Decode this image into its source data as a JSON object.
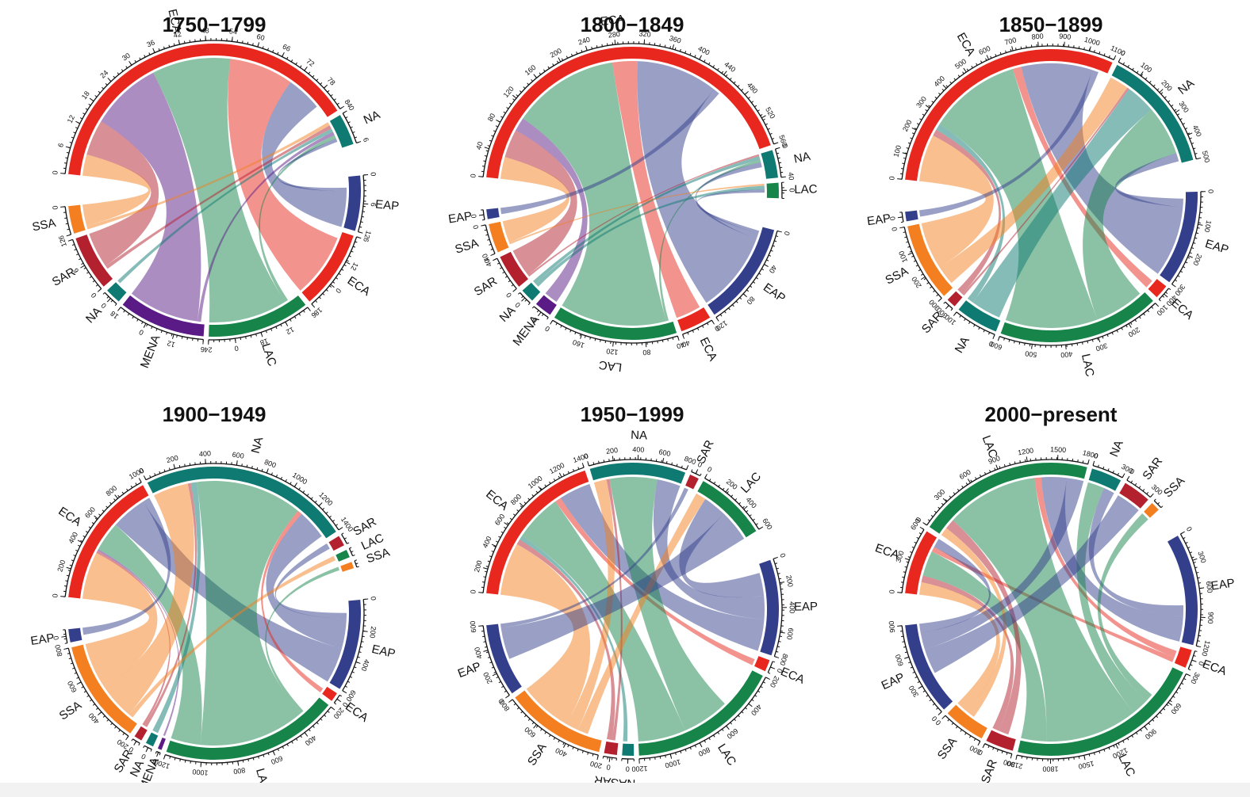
{
  "colors": {
    "ECA": "#e8281e",
    "NA": "#0e7a72",
    "EAP": "#343f8c",
    "SSA": "#f47f20",
    "SAR": "#b3202e",
    "MENA": "#5a1b86",
    "LAC": "#17844a"
  },
  "chart_data": [
    {
      "type": "chord",
      "title": "1750−1799",
      "sectors": [
        {
          "name": "ECA",
          "value": 90,
          "ticks": [
            "0",
            "6",
            "12",
            "18",
            "24",
            "30",
            "36",
            "42",
            "48",
            "54",
            "60",
            "66",
            "72",
            "78",
            "84"
          ]
        },
        {
          "name": "NA",
          "value": 8,
          "ticks": [
            "0",
            "6"
          ]
        },
        {
          "name": "EAP",
          "value": 14,
          "ticks": [
            "0",
            "6",
            "12"
          ]
        },
        {
          "name": "ECA",
          "value": 20,
          "ticks": [
            "6",
            "12",
            "0",
            "18"
          ]
        },
        {
          "name": "LAC",
          "value": 26,
          "ticks": [
            "6",
            "12",
            "18",
            "0",
            "24"
          ]
        },
        {
          "name": "MENA",
          "value": 22,
          "ticks": [
            "6",
            "12",
            "0",
            "18"
          ]
        },
        {
          "name": "NA",
          "value": 4,
          "ticks": [
            "0"
          ]
        },
        {
          "name": "SAR",
          "value": 14,
          "ticks": [
            "0",
            "6",
            "12"
          ]
        },
        {
          "name": "SSA",
          "value": 7,
          "ticks": [
            "6",
            "0"
          ]
        }
      ],
      "links": [
        {
          "from": 0,
          "to": 8,
          "value": 6
        },
        {
          "from": 0,
          "to": 7,
          "value": 10
        },
        {
          "from": 0,
          "to": 5,
          "value": 20
        },
        {
          "from": 0,
          "to": 4,
          "value": 22
        },
        {
          "from": 0,
          "to": 3,
          "value": 18
        },
        {
          "from": 0,
          "to": 2,
          "value": 10
        },
        {
          "from": 1,
          "to": 8,
          "value": 1
        },
        {
          "from": 1,
          "to": 7,
          "value": 1
        },
        {
          "from": 1,
          "to": 6,
          "value": 1
        },
        {
          "from": 1,
          "to": 5,
          "value": 1
        },
        {
          "from": 1,
          "to": 4,
          "value": 1
        },
        {
          "from": 1,
          "to": 2,
          "value": 1
        }
      ]
    },
    {
      "type": "chord",
      "title": "1800−1849",
      "sectors": [
        {
          "name": "ECA",
          "value": 560,
          "ticks": [
            "0",
            "40",
            "80",
            "120",
            "160",
            "200",
            "240",
            "280",
            "320",
            "360",
            "400",
            "440",
            "480",
            "520",
            "560"
          ]
        },
        {
          "name": "NA",
          "value": 40,
          "ticks": [
            "0",
            "40"
          ]
        },
        {
          "name": "LAC",
          "value": 22,
          "ticks": [
            "0"
          ]
        },
        {
          "name": "EAP",
          "value": 150,
          "ticks": [
            "0",
            "40",
            "80",
            "120"
          ]
        },
        {
          "name": "ECA",
          "value": 45,
          "ticks": [
            "0",
            "40"
          ]
        },
        {
          "name": "LAC",
          "value": 180,
          "ticks": [
            "40",
            "80",
            "120",
            "160",
            "0"
          ]
        },
        {
          "name": "MENA",
          "value": 25,
          "ticks": [
            "0"
          ]
        },
        {
          "name": "NA",
          "value": 20,
          "ticks": [
            "0"
          ]
        },
        {
          "name": "SAR",
          "value": 50,
          "ticks": [
            "0",
            "40"
          ]
        },
        {
          "name": "SSA",
          "value": 42,
          "ticks": [
            "40",
            "0"
          ]
        },
        {
          "name": "EAP",
          "value": 14,
          "ticks": [
            "0"
          ]
        }
      ],
      "links": [
        {
          "from": 0,
          "to": 9,
          "value": 35
        },
        {
          "from": 0,
          "to": 8,
          "value": 45
        },
        {
          "from": 0,
          "to": 6,
          "value": 22
        },
        {
          "from": 0,
          "to": 5,
          "value": 170
        },
        {
          "from": 0,
          "to": 4,
          "value": 40
        },
        {
          "from": 0,
          "to": 3,
          "value": 130
        },
        {
          "from": 0,
          "to": 10,
          "value": 10
        },
        {
          "from": 1,
          "to": 8,
          "value": 3
        },
        {
          "from": 1,
          "to": 7,
          "value": 6
        },
        {
          "from": 1,
          "to": 5,
          "value": 4
        },
        {
          "from": 1,
          "to": 3,
          "value": 8
        },
        {
          "from": 2,
          "to": 9,
          "value": 3
        },
        {
          "from": 2,
          "to": 7,
          "value": 6
        },
        {
          "from": 2,
          "to": 3,
          "value": 5
        }
      ]
    },
    {
      "type": "chord",
      "title": "1850−1899",
      "sectors": [
        {
          "name": "ECA",
          "value": 1150,
          "ticks": [
            "0",
            "100",
            "200",
            "300",
            "400",
            "500",
            "600",
            "700",
            "800",
            "900",
            "1000",
            "1100"
          ]
        },
        {
          "name": "NA",
          "value": 520,
          "ticks": [
            "0",
            "100",
            "200",
            "300",
            "400",
            "500"
          ]
        },
        {
          "name": "EAP",
          "value": 400,
          "ticks": [
            "0",
            "100",
            "200",
            "300"
          ]
        },
        {
          "name": "ECA",
          "value": 60,
          "ticks": [
            "400"
          ]
        },
        {
          "name": "LAC",
          "value": 680,
          "ticks": [
            "100",
            "200",
            "300",
            "400",
            "500",
            "600"
          ]
        },
        {
          "name": "NA",
          "value": 180,
          "ticks": [
            "0",
            "100"
          ]
        },
        {
          "name": "SAR",
          "value": 40,
          "ticks": [
            "300"
          ]
        },
        {
          "name": "SSA",
          "value": 330,
          "ticks": [
            "300",
            "200",
            "100",
            "0"
          ]
        },
        {
          "name": "EAP",
          "value": 40,
          "ticks": [
            "0"
          ]
        }
      ],
      "links": [
        {
          "from": 0,
          "to": 7,
          "value": 220
        },
        {
          "from": 0,
          "to": 6,
          "value": 30
        },
        {
          "from": 0,
          "to": 5,
          "value": 30
        },
        {
          "from": 0,
          "to": 4,
          "value": 430
        },
        {
          "from": 0,
          "to": 3,
          "value": 40
        },
        {
          "from": 0,
          "to": 2,
          "value": 330
        },
        {
          "from": 0,
          "to": 8,
          "value": 30
        },
        {
          "from": 1,
          "to": 7,
          "value": 90
        },
        {
          "from": 1,
          "to": 6,
          "value": 10
        },
        {
          "from": 1,
          "to": 5,
          "value": 140
        },
        {
          "from": 1,
          "to": 4,
          "value": 230
        },
        {
          "from": 1,
          "to": 2,
          "value": 40
        }
      ]
    },
    {
      "type": "chord",
      "title": "1900−1949",
      "sectors": [
        {
          "name": "ECA",
          "value": 1050,
          "ticks": [
            "0",
            "200",
            "400",
            "600",
            "800",
            "1000"
          ]
        },
        {
          "name": "NA",
          "value": 1600,
          "ticks": [
            "0",
            "200",
            "400",
            "600",
            "800",
            "1000",
            "1200",
            "1400"
          ]
        },
        {
          "name": "SAR",
          "value": 80,
          "ticks": []
        },
        {
          "name": "LAC",
          "value": 60,
          "ticks": []
        },
        {
          "name": "SSA",
          "value": 50,
          "ticks": []
        },
        {
          "name": "EAP",
          "value": 700,
          "ticks": [
            "0",
            "200",
            "400",
            "600"
          ]
        },
        {
          "name": "ECA",
          "value": 70,
          "ticks": [
            "0"
          ]
        },
        {
          "name": "LAC",
          "value": 1350,
          "ticks": [
            "200",
            "400",
            "600",
            "800",
            "1000",
            "1200"
          ]
        },
        {
          "name": "MENA",
          "value": 30,
          "ticks": [
            "0"
          ]
        },
        {
          "name": "NA",
          "value": 60,
          "ticks": [
            "0"
          ]
        },
        {
          "name": "SAR",
          "value": 60,
          "ticks": [
            "0"
          ]
        },
        {
          "name": "SSA",
          "value": 800,
          "ticks": [
            "200",
            "400",
            "600",
            "800"
          ]
        },
        {
          "name": "EAP",
          "value": 100,
          "ticks": [
            "0"
          ]
        }
      ],
      "links": [
        {
          "from": 0,
          "to": 11,
          "value": 400
        },
        {
          "from": 0,
          "to": 10,
          "value": 20
        },
        {
          "from": 0,
          "to": 8,
          "value": 15
        },
        {
          "from": 0,
          "to": 7,
          "value": 250
        },
        {
          "from": 0,
          "to": 5,
          "value": 300
        },
        {
          "from": 0,
          "to": 12,
          "value": 60
        },
        {
          "from": 1,
          "to": 11,
          "value": 300
        },
        {
          "from": 1,
          "to": 10,
          "value": 25
        },
        {
          "from": 1,
          "to": 9,
          "value": 50
        },
        {
          "from": 1,
          "to": 7,
          "value": 900
        },
        {
          "from": 1,
          "to": 6,
          "value": 40
        },
        {
          "from": 1,
          "to": 5,
          "value": 250
        },
        {
          "from": 2,
          "to": 5,
          "value": 50
        },
        {
          "from": 3,
          "to": 11,
          "value": 40
        },
        {
          "from": 4,
          "to": 7,
          "value": 30
        }
      ]
    },
    {
      "type": "chord",
      "title": "1950−1999",
      "sectors": [
        {
          "name": "ECA",
          "value": 1400,
          "ticks": [
            "0",
            "200",
            "400",
            "600",
            "800",
            "1000",
            "1200",
            "1400"
          ]
        },
        {
          "name": "NA",
          "value": 820,
          "ticks": [
            "0",
            "200",
            "400",
            "600",
            "800"
          ]
        },
        {
          "name": "SAR",
          "value": 80,
          "ticks": [
            "0"
          ]
        },
        {
          "name": "LAC",
          "value": 620,
          "ticks": [
            "0",
            "200",
            "400",
            "600"
          ]
        },
        {
          "name": "EAP",
          "value": 820,
          "ticks": [
            "0",
            "200",
            "400",
            "600",
            "800"
          ]
        },
        {
          "name": "ECA",
          "value": 100,
          "ticks": [
            "0"
          ]
        },
        {
          "name": "LAC",
          "value": 1300,
          "ticks": [
            "200",
            "400",
            "600",
            "800",
            "1000",
            "1200"
          ]
        },
        {
          "name": "NA",
          "value": 100,
          "ticks": [
            "0"
          ]
        },
        {
          "name": "SAR",
          "value": 110,
          "ticks": [
            "0"
          ]
        },
        {
          "name": "SSA",
          "value": 860,
          "ticks": [
            "200",
            "400",
            "600",
            "800"
          ]
        },
        {
          "name": "EAP",
          "value": 620,
          "ticks": [
            "0",
            "200",
            "400",
            "600"
          ]
        }
      ],
      "links": [
        {
          "from": 0,
          "to": 9,
          "value": 500
        },
        {
          "from": 0,
          "to": 8,
          "value": 50
        },
        {
          "from": 0,
          "to": 7,
          "value": 40
        },
        {
          "from": 0,
          "to": 6,
          "value": 450
        },
        {
          "from": 0,
          "to": 5,
          "value": 60
        },
        {
          "from": 0,
          "to": 4,
          "value": 300
        },
        {
          "from": 1,
          "to": 9,
          "value": 120
        },
        {
          "from": 1,
          "to": 8,
          "value": 30
        },
        {
          "from": 1,
          "to": 6,
          "value": 450
        },
        {
          "from": 1,
          "to": 4,
          "value": 220
        },
        {
          "from": 2,
          "to": 10,
          "value": 40
        },
        {
          "from": 3,
          "to": 9,
          "value": 100
        },
        {
          "from": 3,
          "to": 4,
          "value": 220
        },
        {
          "from": 3,
          "to": 10,
          "value": 300
        }
      ]
    },
    {
      "type": "chord",
      "title": "2000−present",
      "sectors": [
        {
          "name": "ECA",
          "value": 700,
          "ticks": [
            "0",
            "300",
            "600"
          ]
        },
        {
          "name": "LAC",
          "value": 1900,
          "ticks": [
            "0",
            "300",
            "600",
            "900",
            "1200",
            "1500",
            "1800"
          ]
        },
        {
          "name": "NA",
          "value": 330,
          "ticks": [
            "0",
            "300"
          ]
        },
        {
          "name": "SAR",
          "value": 300,
          "ticks": [
            "0",
            "300"
          ]
        },
        {
          "name": "SSA",
          "value": 100,
          "ticks": []
        },
        {
          "name": "EAP",
          "value": 1200,
          "ticks": [
            "0",
            "300",
            "600",
            "900",
            "1200"
          ]
        },
        {
          "name": "ECA",
          "value": 200,
          "ticks": [
            "0"
          ]
        },
        {
          "name": "LAC",
          "value": 2100,
          "ticks": [
            "300",
            "600",
            "900",
            "1200",
            "1500",
            "1800",
            "2100"
          ]
        },
        {
          "name": "SAR",
          "value": 300,
          "ticks": [
            "300",
            "0"
          ]
        },
        {
          "name": "SSA",
          "value": 450,
          "ticks": [
            "300",
            "0"
          ]
        },
        {
          "name": "EAP",
          "value": 1000,
          "ticks": [
            "0",
            "300",
            "600",
            "900"
          ]
        }
      ],
      "links": [
        {
          "from": 0,
          "to": 9,
          "value": 150
        },
        {
          "from": 0,
          "to": 8,
          "value": 80
        },
        {
          "from": 0,
          "to": 7,
          "value": 300
        },
        {
          "from": 0,
          "to": 6,
          "value": 60
        },
        {
          "from": 0,
          "to": 10,
          "value": 110
        },
        {
          "from": 1,
          "to": 9,
          "value": 100
        },
        {
          "from": 1,
          "to": 8,
          "value": 120
        },
        {
          "from": 1,
          "to": 7,
          "value": 1100
        },
        {
          "from": 1,
          "to": 6,
          "value": 80
        },
        {
          "from": 1,
          "to": 5,
          "value": 300
        },
        {
          "from": 1,
          "to": 10,
          "value": 200
        },
        {
          "from": 2,
          "to": 7,
          "value": 200
        },
        {
          "from": 2,
          "to": 5,
          "value": 130
        },
        {
          "from": 3,
          "to": 10,
          "value": 300
        },
        {
          "from": 4,
          "to": 7,
          "value": 100
        }
      ]
    }
  ]
}
